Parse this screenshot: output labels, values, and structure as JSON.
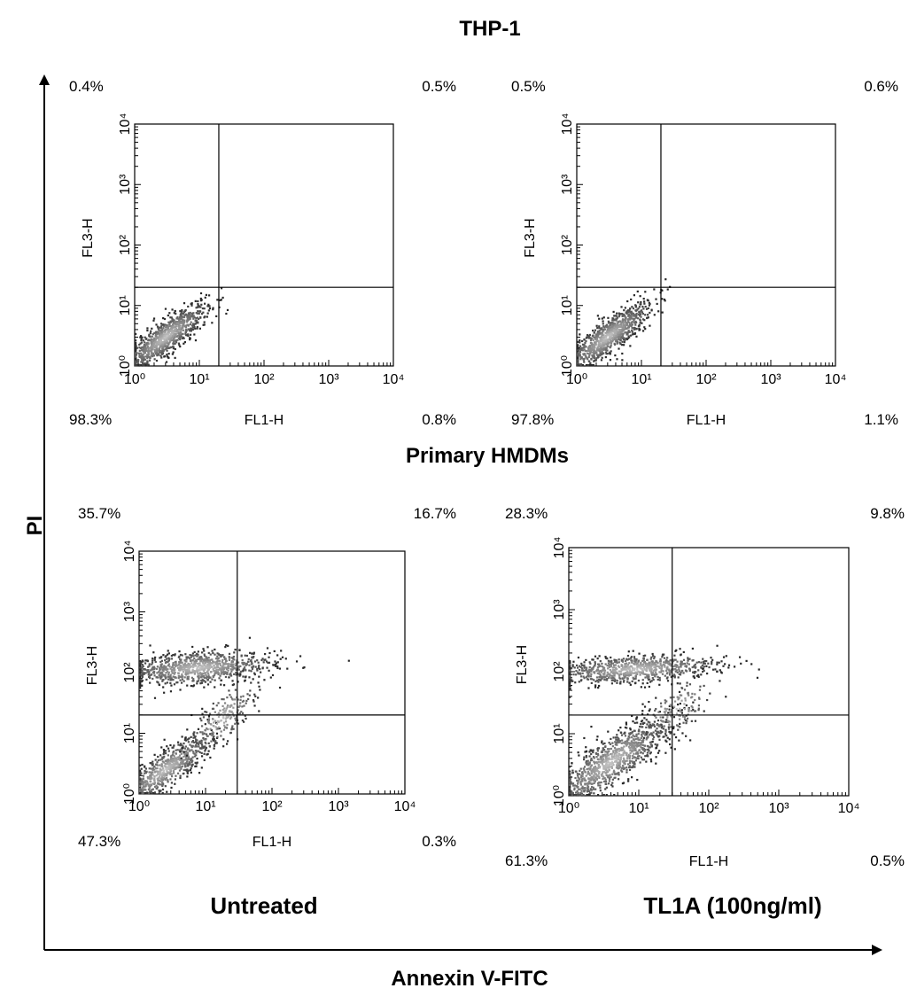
{
  "figure": {
    "top_title": "THP-1",
    "middle_title": "Primary HMDMs",
    "y_axis_label": "PI",
    "x_axis_label": "Annexin V-FITC",
    "bottom_left_label": "Untreated",
    "bottom_right_label": "TL1A (100ng/ml)"
  },
  "chart_data": [
    {
      "type": "scatter",
      "group": "THP-1",
      "condition": "Untreated",
      "xlabel": "FL1-H",
      "ylabel": "FL3-H",
      "x_scale": "log",
      "y_scale": "log",
      "xlim": [
        1,
        10000
      ],
      "ylim": [
        1,
        10000
      ],
      "xticks": [
        "10⁰",
        "10¹",
        "10²",
        "10³",
        "10⁴"
      ],
      "yticks": [
        "10⁰",
        "10¹",
        "10²",
        "10³",
        "10⁴"
      ],
      "gate_x": 20,
      "gate_y": 20,
      "quadrants": {
        "upper_left": "0.4%",
        "upper_right": "0.5%",
        "lower_left": "98.3%",
        "lower_right": "0.8%"
      },
      "populations": [
        {
          "name": "live",
          "cx": 3,
          "cy": 3,
          "spread_x": 0.32,
          "spread_y": 0.28,
          "corr": 0.85,
          "n": 900
        }
      ]
    },
    {
      "type": "scatter",
      "group": "THP-1",
      "condition": "TL1A (100ng/ml)",
      "xlabel": "FL1-H",
      "ylabel": "FL3-H",
      "x_scale": "log",
      "y_scale": "log",
      "xlim": [
        1,
        10000
      ],
      "ylim": [
        1,
        10000
      ],
      "xticks": [
        "10⁰",
        "10¹",
        "10²",
        "10³",
        "10⁴"
      ],
      "yticks": [
        "10⁰",
        "10¹",
        "10²",
        "10³",
        "10⁴"
      ],
      "gate_x": 20,
      "gate_y": 20,
      "quadrants": {
        "upper_left": "0.5%",
        "upper_right": "0.6%",
        "lower_left": "97.8%",
        "lower_right": "1.1%"
      },
      "populations": [
        {
          "name": "live",
          "cx": 3,
          "cy": 3,
          "spread_x": 0.33,
          "spread_y": 0.28,
          "corr": 0.85,
          "n": 900
        }
      ]
    },
    {
      "type": "scatter",
      "group": "Primary HMDMs",
      "condition": "Untreated",
      "xlabel": "FL1-H",
      "ylabel": "FL3-H",
      "x_scale": "log",
      "y_scale": "log",
      "xlim": [
        1,
        10000
      ],
      "ylim": [
        1,
        10000
      ],
      "xticks": [
        "10⁰",
        "10¹",
        "10²",
        "10³",
        "10⁴"
      ],
      "yticks": [
        "10⁰",
        "10¹",
        "10²",
        "10³",
        "10⁴"
      ],
      "gate_x": 30,
      "gate_y": 20,
      "quadrants": {
        "upper_left": "35.7%",
        "upper_right": "16.7%",
        "lower_left": "47.3%",
        "lower_right": "0.3%"
      },
      "populations": [
        {
          "name": "live",
          "cx": 2.5,
          "cy": 2.5,
          "spread_x": 0.35,
          "spread_y": 0.3,
          "corr": 0.85,
          "n": 700
        },
        {
          "name": "PI-positive",
          "cx": 8,
          "cy": 120,
          "spread_x": 0.55,
          "spread_y": 0.14,
          "corr": 0.3,
          "n": 900
        },
        {
          "name": "bridge",
          "cx": 18,
          "cy": 18,
          "spread_x": 0.25,
          "spread_y": 0.3,
          "corr": 0.7,
          "n": 220
        }
      ]
    },
    {
      "type": "scatter",
      "group": "Primary HMDMs",
      "condition": "TL1A (100ng/ml)",
      "xlabel": "FL1-H",
      "ylabel": "FL3-H",
      "x_scale": "log",
      "y_scale": "log",
      "xlim": [
        1,
        10000
      ],
      "ylim": [
        1,
        10000
      ],
      "xticks": [
        "10⁰",
        "10¹",
        "10²",
        "10³",
        "10⁴"
      ],
      "yticks": [
        "10⁰",
        "10¹",
        "10²",
        "10³",
        "10⁴"
      ],
      "gate_x": 30,
      "gate_y": 20,
      "quadrants": {
        "upper_left": "28.3%",
        "upper_right": "9.8%",
        "lower_left": "61.3%",
        "lower_right": "0.5%"
      },
      "populations": [
        {
          "name": "live",
          "cx": 4,
          "cy": 3.5,
          "spread_x": 0.42,
          "spread_y": 0.36,
          "corr": 0.82,
          "n": 1000
        },
        {
          "name": "PI-positive",
          "cx": 9,
          "cy": 110,
          "spread_x": 0.6,
          "spread_y": 0.12,
          "corr": 0.35,
          "n": 800
        },
        {
          "name": "bridge",
          "cx": 35,
          "cy": 25,
          "spread_x": 0.25,
          "spread_y": 0.25,
          "corr": 0.6,
          "n": 150
        }
      ]
    }
  ]
}
